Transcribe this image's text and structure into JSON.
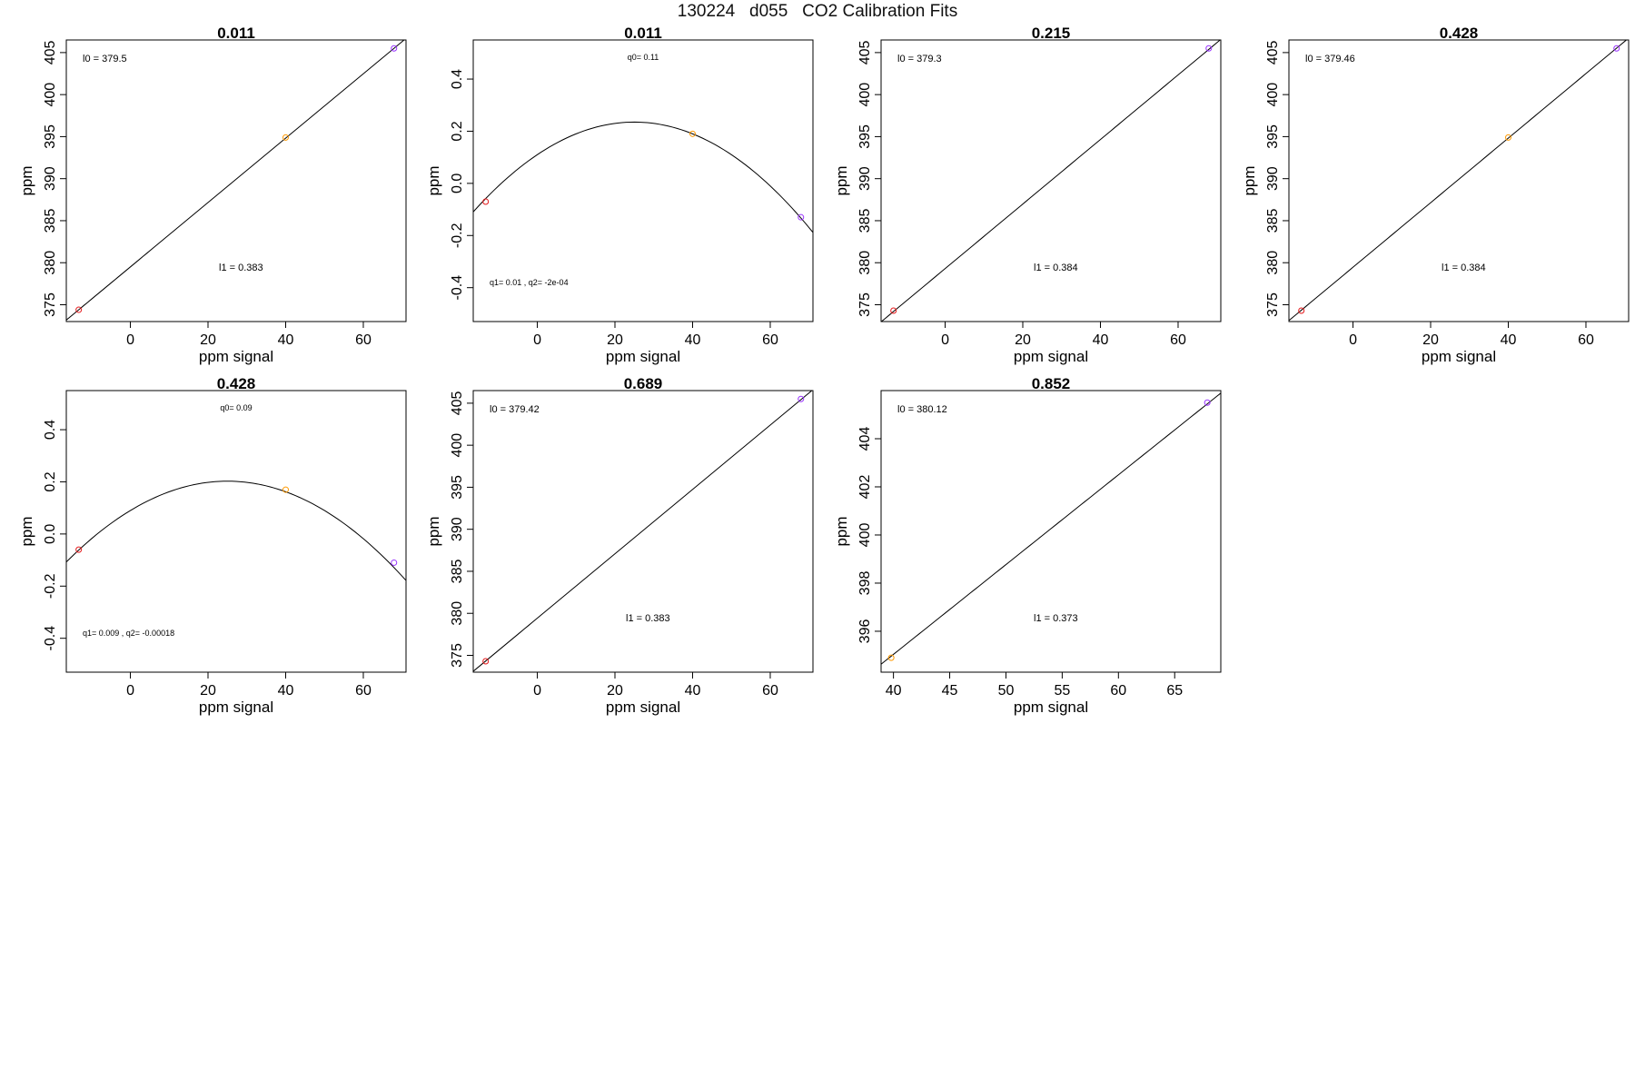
{
  "figure": {
    "title": "130224   d055   CO2 Calibration Fits"
  },
  "colors": {
    "point_low": "#e41a1c",
    "point_mid": "#ff9900",
    "point_high": "#9933ff",
    "axis": "#000000",
    "fit": "#000000"
  },
  "chart_data": [
    {
      "type": "scatter",
      "fit": "linear",
      "title": "0.011",
      "xlabel": "ppm signal",
      "ylabel": "ppm",
      "xlim": [
        -16.5,
        71
      ],
      "ylim": [
        373,
        406.5
      ],
      "xticks": [
        0,
        20,
        40,
        60
      ],
      "yticks": [
        375,
        380,
        385,
        390,
        395,
        400,
        405
      ],
      "points": [
        {
          "x": -13.3,
          "y": 374.4
        },
        {
          "x": 40.0,
          "y": 394.9
        },
        {
          "x": 67.9,
          "y": 405.5
        }
      ],
      "coef": {
        "intercept": 379.5,
        "slope": 0.383
      },
      "annotations": [
        "l0 =  379.5",
        "l1 =  0.383"
      ]
    },
    {
      "type": "scatter",
      "fit": "quadratic",
      "title": "0.011",
      "xlabel": "ppm signal",
      "ylabel": "ppm",
      "xlim": [
        -16.5,
        71
      ],
      "ylim": [
        -0.53,
        0.55
      ],
      "xticks": [
        0,
        20,
        40,
        60
      ],
      "yticks": [
        -0.4,
        -0.2,
        0.0,
        0.2,
        0.4
      ],
      "ytick_labels": [
        "-0.4",
        "-0.2",
        "0.0",
        "0.2",
        "0.4"
      ],
      "points": [
        {
          "x": -13.3,
          "y": -0.07
        },
        {
          "x": 40.0,
          "y": 0.19
        },
        {
          "x": 67.9,
          "y": -0.13
        }
      ],
      "coef": {
        "q0": 0.11,
        "q1": 0.01,
        "q2": -0.0002
      },
      "annotations": [
        "q0= 0.11",
        "q1= 0.01 , q2= -2e-04"
      ]
    },
    {
      "type": "scatter",
      "fit": "linear",
      "title": "0.215",
      "xlabel": "ppm signal",
      "ylabel": "ppm",
      "xlim": [
        -16.5,
        71
      ],
      "ylim": [
        373,
        406.5
      ],
      "xticks": [
        0,
        20,
        40,
        60
      ],
      "yticks": [
        375,
        380,
        385,
        390,
        395,
        400,
        405
      ],
      "points": [
        {
          "x": -13.3,
          "y": 374.3
        },
        {
          "x": 67.9,
          "y": 405.5
        }
      ],
      "coef": {
        "intercept": 379.3,
        "slope": 0.384
      },
      "annotations": [
        "l0 =  379.3",
        "l1 =  0.384"
      ]
    },
    {
      "type": "scatter",
      "fit": "linear",
      "title": "0.428",
      "xlabel": "ppm signal",
      "ylabel": "ppm",
      "xlim": [
        -16.5,
        71
      ],
      "ylim": [
        373,
        406.5
      ],
      "xticks": [
        0,
        20,
        40,
        60
      ],
      "yticks": [
        375,
        380,
        385,
        390,
        395,
        400,
        405
      ],
      "points": [
        {
          "x": -13.3,
          "y": 374.3
        },
        {
          "x": 40.0,
          "y": 394.9
        },
        {
          "x": 67.9,
          "y": 405.5
        }
      ],
      "coef": {
        "intercept": 379.46,
        "slope": 0.384
      },
      "annotations": [
        "l0 =  379.46",
        "l1 =  0.384"
      ]
    },
    {
      "type": "scatter",
      "fit": "quadratic",
      "title": "0.428",
      "xlabel": "ppm signal",
      "ylabel": "ppm",
      "xlim": [
        -16.5,
        71
      ],
      "ylim": [
        -0.53,
        0.55
      ],
      "xticks": [
        0,
        20,
        40,
        60
      ],
      "yticks": [
        -0.4,
        -0.2,
        0.0,
        0.2,
        0.4
      ],
      "ytick_labels": [
        "-0.4",
        "-0.2",
        "0.0",
        "0.2",
        "0.4"
      ],
      "points": [
        {
          "x": -13.3,
          "y": -0.06
        },
        {
          "x": 40.0,
          "y": 0.17
        },
        {
          "x": 67.9,
          "y": -0.11
        }
      ],
      "coef": {
        "q0": 0.09,
        "q1": 0.009,
        "q2": -0.00018
      },
      "annotations": [
        "q0= 0.09",
        "q1= 0.009 , q2= -0.00018"
      ]
    },
    {
      "type": "scatter",
      "fit": "linear",
      "title": "0.689",
      "xlabel": "ppm signal",
      "ylabel": "ppm",
      "xlim": [
        -16.5,
        71
      ],
      "ylim": [
        373,
        406.5
      ],
      "xticks": [
        0,
        20,
        40,
        60
      ],
      "yticks": [
        375,
        380,
        385,
        390,
        395,
        400,
        405
      ],
      "points": [
        {
          "x": -13.3,
          "y": 374.3
        },
        {
          "x": 67.9,
          "y": 405.5
        }
      ],
      "coef": {
        "intercept": 379.42,
        "slope": 0.383
      },
      "annotations": [
        "l0 =  379.42",
        "l1 =  0.383"
      ]
    },
    {
      "type": "scatter",
      "fit": "linear",
      "title": "0.852",
      "xlabel": "ppm signal",
      "ylabel": "ppm",
      "xlim": [
        38.9,
        69.1
      ],
      "ylim": [
        394.3,
        406.0
      ],
      "xticks": [
        40,
        45,
        50,
        55,
        60,
        65
      ],
      "yticks": [
        396,
        398,
        400,
        402,
        404
      ],
      "points": [
        {
          "x": 39.8,
          "y": 394.9
        },
        {
          "x": 67.9,
          "y": 405.5
        }
      ],
      "coef": {
        "intercept": 380.12,
        "slope": 0.373
      },
      "annotations": [
        "l0 =  380.12",
        "l1 =  0.373"
      ]
    }
  ]
}
